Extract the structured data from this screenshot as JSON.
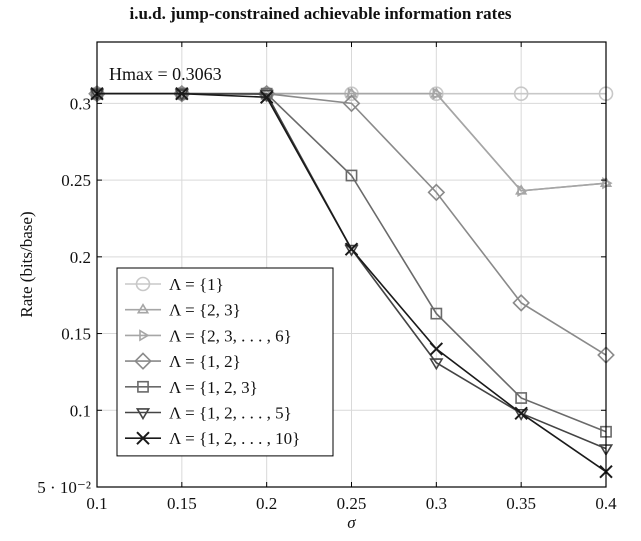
{
  "chart_data": {
    "type": "line",
    "title": "i.u.d. jump-constrained achievable information rates",
    "xlabel": "σ",
    "ylabel": "Rate (bits/base)",
    "x": [
      0.1,
      0.15,
      0.2,
      0.25,
      0.3,
      0.35,
      0.4
    ],
    "xlim": [
      0.1,
      0.4
    ],
    "ylim": [
      0.05,
      0.34
    ],
    "xticks": [
      {
        "value": 0.1,
        "label": "0.1"
      },
      {
        "value": 0.15,
        "label": "0.15"
      },
      {
        "value": 0.2,
        "label": "0.2"
      },
      {
        "value": 0.25,
        "label": "0.25"
      },
      {
        "value": 0.3,
        "label": "0.3"
      },
      {
        "value": 0.35,
        "label": "0.35"
      },
      {
        "value": 0.4,
        "label": "0.4"
      }
    ],
    "yticks": [
      {
        "value": 0.05,
        "label": "5 · 10⁻²"
      },
      {
        "value": 0.1,
        "label": "0.1"
      },
      {
        "value": 0.15,
        "label": "0.15"
      },
      {
        "value": 0.2,
        "label": "0.2"
      },
      {
        "value": 0.25,
        "label": "0.25"
      },
      {
        "value": 0.3,
        "label": "0.3"
      }
    ],
    "grid": true,
    "legend_position": "bottom-left",
    "annotation": "Hmax = 0.3063",
    "series": [
      {
        "name": "Λ = {1}",
        "marker": "circle",
        "color": "#c8c8c8",
        "values": [
          0.3063,
          0.3063,
          0.3063,
          0.3063,
          0.3063,
          0.3063,
          0.3063
        ]
      },
      {
        "name": "Λ = {2, 3}",
        "marker": "triangle-up",
        "color": "#a6a6a6",
        "values": [
          0.3063,
          0.3063,
          0.3063,
          0.3063,
          0.3063,
          0.243,
          0.248
        ]
      },
      {
        "name": "Λ = {2, 3, . . . , 6}",
        "marker": "triangle-right",
        "color": "#a6a6a6",
        "values": [
          0.3063,
          0.3063,
          0.3063,
          0.3063,
          0.3063,
          0.243,
          0.248
        ]
      },
      {
        "name": "Λ = {1, 2}",
        "marker": "diamond",
        "color": "#8a8a8a",
        "values": [
          0.3063,
          0.3063,
          0.3063,
          0.3,
          0.242,
          0.17,
          0.136
        ]
      },
      {
        "name": "Λ = {1, 2, 3}",
        "marker": "square",
        "color": "#6a6a6a",
        "values": [
          0.3063,
          0.3063,
          0.3063,
          0.253,
          0.163,
          0.108,
          0.086
        ]
      },
      {
        "name": "Λ = {1, 2, . . . , 5}",
        "marker": "triangle-down",
        "color": "#444444",
        "values": [
          0.3063,
          0.3063,
          0.306,
          0.205,
          0.131,
          0.098,
          0.075
        ]
      },
      {
        "name": "Λ = {1, 2, . . . , 10}",
        "marker": "cross",
        "color": "#1a1a1a",
        "values": [
          0.3063,
          0.3063,
          0.304,
          0.205,
          0.14,
          0.098,
          0.06
        ]
      }
    ]
  }
}
